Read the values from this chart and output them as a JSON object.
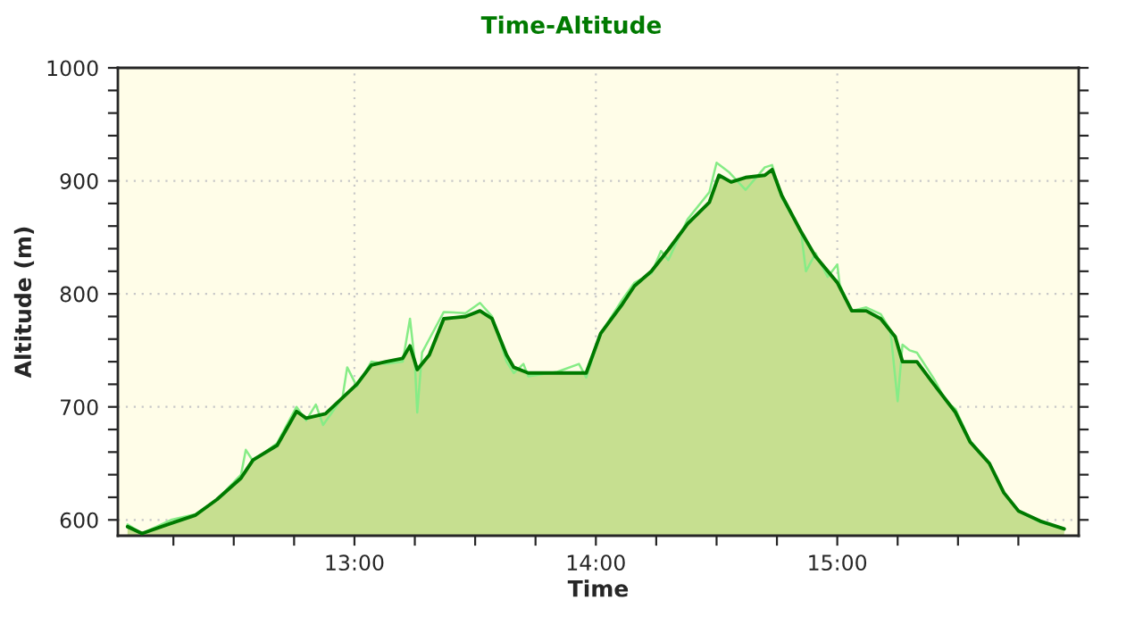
{
  "chart_data": {
    "type": "area",
    "title": "Time-Altitude",
    "xlabel": "Time",
    "ylabel": "Altitude (m)",
    "xlim": [
      12.02,
      16.0
    ],
    "xticks": [
      {
        "value": 12.25,
        "label": null
      },
      {
        "value": 12.5,
        "label": null
      },
      {
        "value": 12.75,
        "label": null
      },
      {
        "value": 13,
        "label": "13:00"
      },
      {
        "value": 13.25,
        "label": null
      },
      {
        "value": 13.5,
        "label": null
      },
      {
        "value": 13.75,
        "label": null
      },
      {
        "value": 14,
        "label": "14:00"
      },
      {
        "value": 14.25,
        "label": null
      },
      {
        "value": 14.5,
        "label": null
      },
      {
        "value": 14.75,
        "label": null
      },
      {
        "value": 15,
        "label": "15:00"
      },
      {
        "value": 15.25,
        "label": null
      },
      {
        "value": 15.5,
        "label": null
      },
      {
        "value": 15.75,
        "label": null
      }
    ],
    "ylim": [
      586,
      1000
    ],
    "yticks": [
      600,
      {
        "value": 620,
        "label": null
      },
      {
        "value": 640,
        "label": null
      },
      {
        "value": 660,
        "label": null
      },
      {
        "value": 680,
        "label": null
      },
      700,
      {
        "value": 720,
        "label": null
      },
      {
        "value": 740,
        "label": null
      },
      {
        "value": 760,
        "label": null
      },
      {
        "value": 780,
        "label": null
      },
      800,
      {
        "value": 820,
        "label": null
      },
      {
        "value": 840,
        "label": null
      },
      {
        "value": 860,
        "label": null
      },
      {
        "value": 880,
        "label": null
      },
      900,
      {
        "value": 920,
        "label": null
      },
      {
        "value": 940,
        "label": null
      },
      {
        "value": 960,
        "label": null
      },
      {
        "value": 980,
        "label": null
      },
      1000
    ],
    "grid": true,
    "series": [
      {
        "color": "#007a00",
        "x": [
          12.06,
          12.12,
          12.24,
          12.34,
          12.43,
          12.53,
          12.58,
          12.68,
          12.76,
          12.8,
          12.88,
          12.95,
          13.01,
          13.07,
          13.13,
          13.2,
          13.23,
          13.26,
          13.31,
          13.37,
          13.46,
          13.52,
          13.57,
          13.63,
          13.66,
          13.72,
          13.84,
          13.96,
          14.02,
          14.11,
          14.16,
          14.23,
          14.3,
          14.38,
          14.47,
          14.51,
          14.56,
          14.62,
          14.7,
          14.73,
          14.77,
          14.85,
          14.91,
          15.0,
          15.06,
          15.12,
          15.18,
          15.24,
          15.27,
          15.33,
          15.4,
          15.49,
          15.55,
          15.63,
          15.69,
          15.75,
          15.84,
          15.94
        ],
        "values": [
          594,
          588,
          597,
          604,
          618,
          637,
          653,
          666,
          696,
          690,
          694,
          708,
          720,
          737,
          740,
          743,
          754,
          733,
          746,
          778,
          780,
          785,
          778,
          746,
          735,
          730,
          730,
          730,
          765,
          791,
          807,
          820,
          839,
          862,
          881,
          905,
          899,
          903,
          905,
          910,
          887,
          855,
          833,
          810,
          785,
          785,
          778,
          762,
          740,
          740,
          720,
          695,
          669,
          650,
          624,
          608,
          599,
          592
        ]
      },
      {
        "type": "line",
        "color": "#86ec86",
        "x": [
          12.06,
          12.12,
          12.24,
          12.34,
          12.43,
          12.53,
          12.55,
          12.58,
          12.68,
          12.76,
          12.8,
          12.84,
          12.87,
          12.95,
          12.97,
          13.01,
          13.07,
          13.13,
          13.2,
          13.23,
          13.25,
          13.26,
          13.28,
          13.31,
          13.37,
          13.46,
          13.52,
          13.57,
          13.63,
          13.66,
          13.7,
          13.72,
          13.84,
          13.93,
          13.96,
          14.02,
          14.11,
          14.16,
          14.23,
          14.27,
          14.3,
          14.38,
          14.47,
          14.5,
          14.55,
          14.62,
          14.7,
          14.73,
          14.77,
          14.85,
          14.87,
          14.91,
          14.96,
          15.0,
          15.01,
          15.06,
          15.12,
          15.18,
          15.22,
          15.25,
          15.27,
          15.3,
          15.33,
          15.4,
          15.45,
          15.49,
          15.55,
          15.63,
          15.69,
          15.75,
          15.84,
          15.94
        ],
        "values": [
          596,
          588,
          600,
          605,
          618,
          640,
          662,
          652,
          668,
          700,
          688,
          702,
          684,
          708,
          735,
          718,
          740,
          738,
          740,
          778,
          740,
          695,
          748,
          760,
          784,
          783,
          792,
          780,
          740,
          730,
          738,
          727,
          731,
          738,
          726,
          765,
          795,
          810,
          818,
          838,
          830,
          866,
          890,
          916,
          908,
          892,
          912,
          914,
          885,
          855,
          820,
          836,
          815,
          826,
          808,
          785,
          788,
          782,
          768,
          705,
          755,
          750,
          748,
          725,
          705,
          698,
          670,
          650,
          624,
          608,
          598,
          592
        ]
      }
    ]
  }
}
